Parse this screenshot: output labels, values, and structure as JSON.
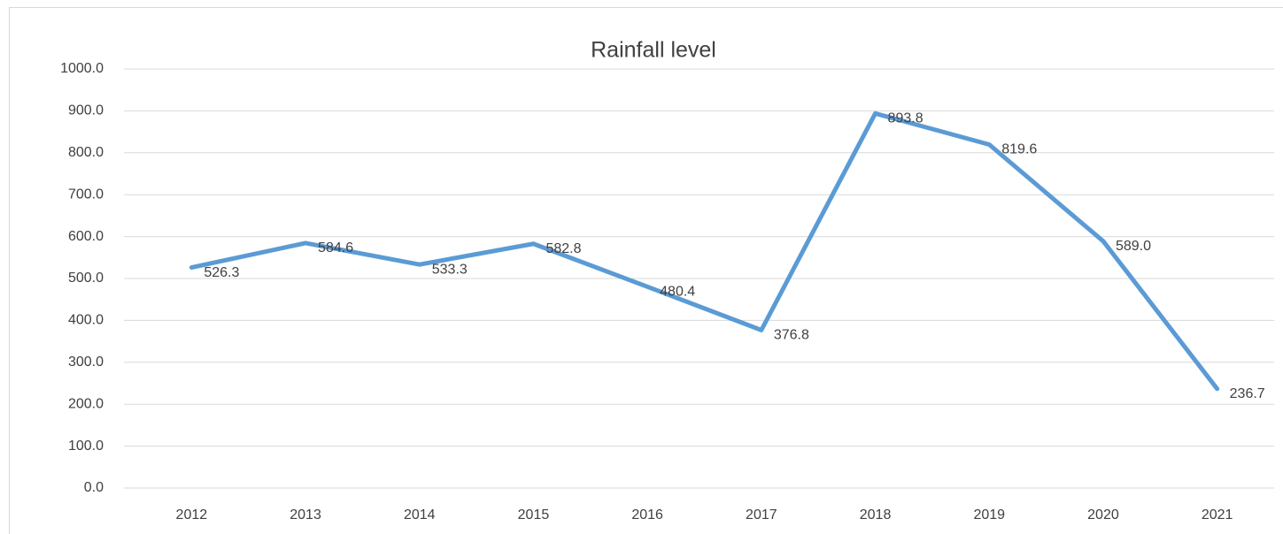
{
  "chart_data": {
    "type": "line",
    "title": "Rainfall level",
    "categories": [
      "2012",
      "2013",
      "2014",
      "2015",
      "2016",
      "2017",
      "2018",
      "2019",
      "2020",
      "2021"
    ],
    "values": [
      526.3,
      584.6,
      533.3,
      582.8,
      480.4,
      376.8,
      893.8,
      819.6,
      589.0,
      236.7
    ],
    "value_labels": [
      "526.3",
      "584.6",
      "533.3",
      "582.8",
      "480.4",
      "376.8",
      "893.8",
      "819.6",
      "589.0",
      "236.7"
    ],
    "color": "#5b9bd5",
    "ylim": [
      0,
      1000
    ],
    "yticks": [
      {
        "value": 0,
        "label": "0.0"
      },
      {
        "value": 100,
        "label": "100.0"
      },
      {
        "value": 200,
        "label": "200.0"
      },
      {
        "value": 300,
        "label": "300.0"
      },
      {
        "value": 400,
        "label": "400.0"
      },
      {
        "value": 500,
        "label": "500.0"
      },
      {
        "value": 600,
        "label": "600.0"
      },
      {
        "value": 700,
        "label": "700.0"
      },
      {
        "value": 800,
        "label": "800.0"
      },
      {
        "value": 900,
        "label": "900.0"
      },
      {
        "value": 1000,
        "label": "1000.0"
      }
    ],
    "grid": true
  }
}
